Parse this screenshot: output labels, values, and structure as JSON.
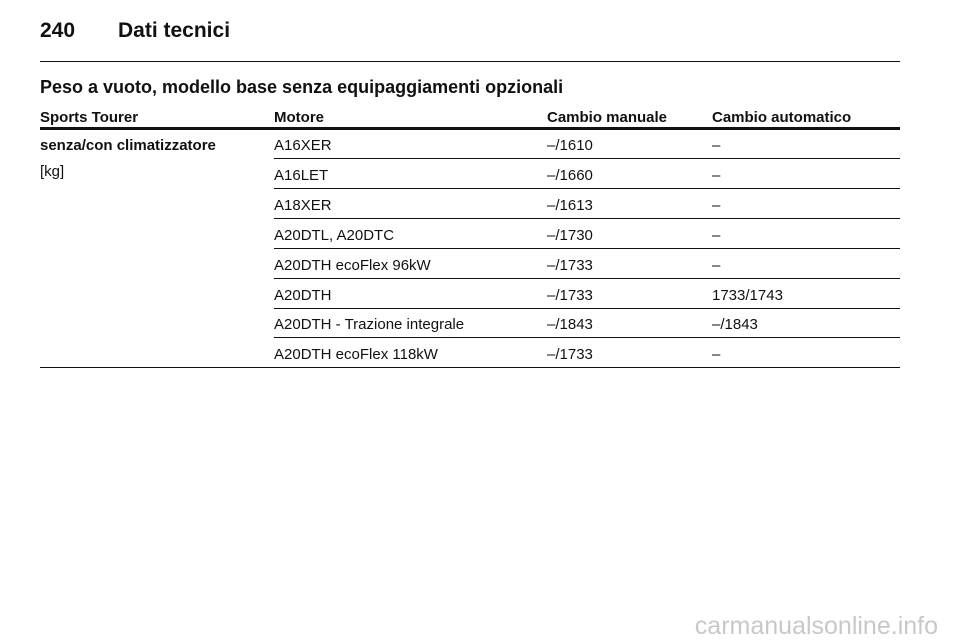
{
  "header": {
    "page_number": "240",
    "title": "Dati tecnici"
  },
  "table": {
    "title": "Peso a vuoto, modello base senza equipaggiamenti opzionali",
    "columns": [
      "Sports Tourer",
      "Motore",
      "Cambio manuale",
      "Cambio automatico"
    ],
    "row_label": "senza/con climatizzatore",
    "unit": "[kg]",
    "rows": [
      [
        "A16XER",
        "–/1610",
        "–"
      ],
      [
        "A16LET",
        "–/1660",
        "–"
      ],
      [
        "A18XER",
        "–/1613",
        "–"
      ],
      [
        "A20DTL, A20DTC",
        "–/1730",
        "–"
      ],
      [
        "A20DTH ecoFlex 96kW",
        "–/1733",
        "–"
      ],
      [
        "A20DTH",
        "–/1733",
        "1733/1743"
      ],
      [
        "A20DTH - Trazione integrale",
        "–/1843",
        "–/1843"
      ],
      [
        "A20DTH ecoFlex 118kW",
        "–/1733",
        "–"
      ]
    ]
  },
  "watermark": "carmanualsonline.info"
}
